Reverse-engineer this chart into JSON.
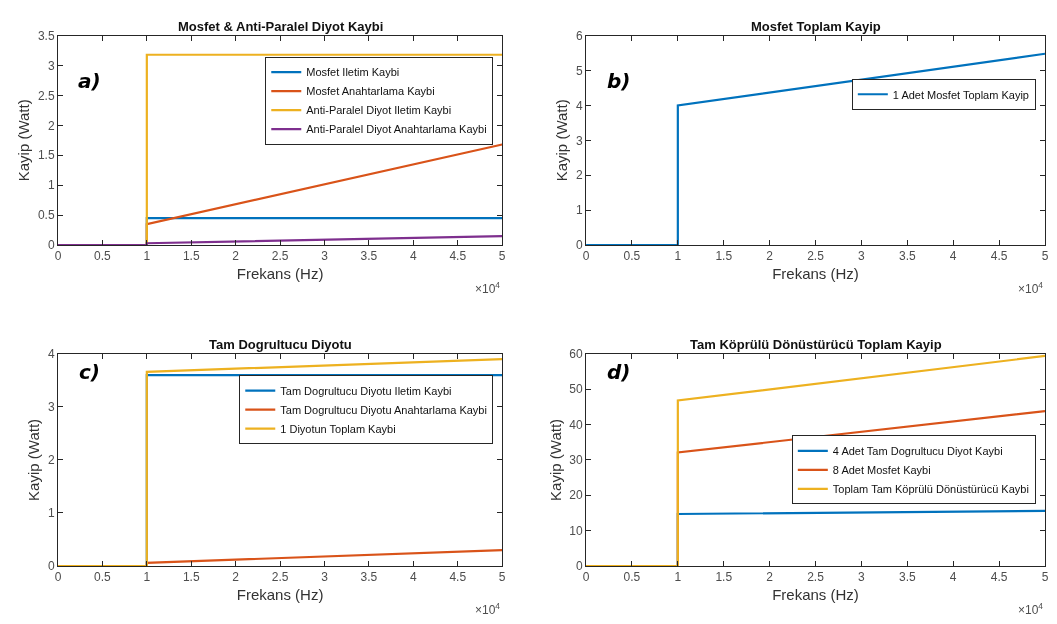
{
  "chart_data": [
    {
      "type": "line",
      "title": "Mosfet & Anti-Paralel Diyot Kaybi",
      "xlabel": "Frekans (Hz)",
      "ylabel": "Kayip (Watt)",
      "x": [
        0,
        1,
        1,
        5
      ],
      "xlim": [
        0,
        5
      ],
      "xticks": [
        0,
        0.5,
        1,
        1.5,
        2,
        2.5,
        3,
        3.5,
        4,
        4.5,
        5
      ],
      "ylim": [
        0,
        3.5
      ],
      "yticks": [
        0,
        0.5,
        1,
        1.5,
        2,
        2.5,
        3,
        3.5
      ],
      "legend": "top right",
      "annotations": [
        "a)",
        "×10$^{4}$"
      ],
      "series": [
        {
          "name": "Mosfet Iletim Kaybi",
          "color": "#0072bd",
          "values": [
            0,
            0,
            0.45,
            0.45
          ]
        },
        {
          "name": "Mosfet Anahtarlama Kaybi",
          "color": "#d95319",
          "values": [
            0,
            0,
            0.35,
            1.68
          ]
        },
        {
          "name": "Anti-Paralel Diyot Iletim Kaybi",
          "color": "#edb120",
          "values": [
            0,
            0,
            3.18,
            3.18
          ]
        },
        {
          "name": "Anti-Paralel Diyot Anahtarlama Kaybi",
          "color": "#7e2f8e",
          "values": [
            0,
            0,
            0.03,
            0.15
          ]
        }
      ]
    },
    {
      "type": "line",
      "title": "Mosfet Toplam Kayip",
      "xlabel": "Frekans (Hz)",
      "ylabel": "Kayip (Watt)",
      "x": [
        0,
        1,
        1,
        5
      ],
      "xlim": [
        0,
        5
      ],
      "xticks": [
        0,
        0.5,
        1,
        1.5,
        2,
        2.5,
        3,
        3.5,
        4,
        4.5,
        5
      ],
      "ylim": [
        0,
        6
      ],
      "yticks": [
        0,
        1,
        2,
        3,
        4,
        5,
        6
      ],
      "legend": "right",
      "annotations": [
        "b)",
        "×10$^{4}$"
      ],
      "series": [
        {
          "name": "1 Adet Mosfet Toplam Kayip",
          "color": "#0072bd",
          "values": [
            0,
            0,
            4.0,
            5.48
          ]
        }
      ]
    },
    {
      "type": "line",
      "title": "Tam Dogrultucu Diyotu",
      "xlabel": "Frekans (Hz)",
      "ylabel": "Kayip (Watt)",
      "x": [
        0,
        1,
        1,
        5
      ],
      "xlim": [
        0,
        5
      ],
      "xticks": [
        0,
        0.5,
        1,
        1.5,
        2,
        2.5,
        3,
        3.5,
        4,
        4.5,
        5
      ],
      "ylim": [
        0,
        4
      ],
      "yticks": [
        0,
        1,
        2,
        3,
        4
      ],
      "legend": "top right",
      "annotations": [
        "c)",
        "×10$^{4}$"
      ],
      "series": [
        {
          "name": "Tam Dogrultucu Diyotu Iletim Kaybi",
          "color": "#0072bd",
          "values": [
            0,
            0,
            3.6,
            3.6
          ]
        },
        {
          "name": "Tam Dogrultucu Diyotu Anahtarlama Kaybi",
          "color": "#d95319",
          "values": [
            0,
            0,
            0.06,
            0.3
          ]
        },
        {
          "name": "1 Diyotun Toplam Kaybi",
          "color": "#edb120",
          "values": [
            0,
            0,
            3.66,
            3.9
          ]
        }
      ]
    },
    {
      "type": "line",
      "title": "Tam Köprülü Dönüstürücü Toplam Kayip",
      "xlabel": "Frekans (Hz)",
      "ylabel": "Kayip (Watt)",
      "x": [
        0,
        1,
        1,
        5
      ],
      "xlim": [
        0,
        5
      ],
      "xticks": [
        0,
        0.5,
        1,
        1.5,
        2,
        2.5,
        3,
        3.5,
        4,
        4.5,
        5
      ],
      "ylim": [
        0,
        60
      ],
      "yticks": [
        0,
        10,
        20,
        30,
        40,
        50,
        60
      ],
      "legend": "bottom right",
      "annotations": [
        "d)",
        "×10$^{4}$"
      ],
      "series": [
        {
          "name": "4 Adet Tam Dogrultucu Diyot Kaybi",
          "color": "#0072bd",
          "values": [
            0,
            0,
            14.7,
            15.6
          ]
        },
        {
          "name": "8 Adet Mosfet Kaybi",
          "color": "#d95319",
          "values": [
            0,
            0,
            32.1,
            43.8
          ]
        },
        {
          "name": "Toplam Tam Köprülü Dönüstürücü Kaybi",
          "color": "#edb120",
          "values": [
            0,
            0,
            46.8,
            59.4
          ]
        }
      ]
    }
  ]
}
